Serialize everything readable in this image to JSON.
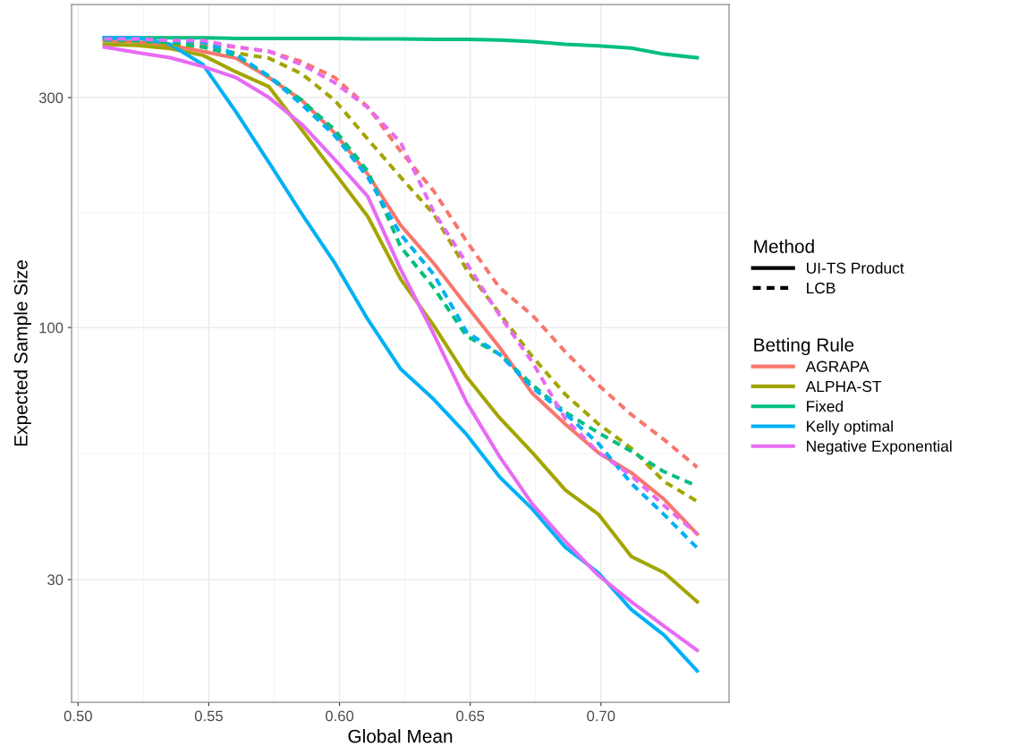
{
  "chart_data": {
    "type": "line",
    "xlabel": "Global Mean",
    "ylabel": "Expected Sample Size",
    "x": [
      0.51,
      0.5226,
      0.5352,
      0.5478,
      0.5604,
      0.573,
      0.5856,
      0.5982,
      0.6108,
      0.6234,
      0.636,
      0.6486,
      0.6612,
      0.6738,
      0.6864,
      0.699,
      0.7116,
      0.7242,
      0.7368
    ],
    "xlim": [
      0.4975,
      0.749
    ],
    "xticks": [
      {
        "value": 0.5,
        "label": "0.50"
      },
      0.55,
      {
        "value": 0.6,
        "label": "0.60"
      },
      0.65,
      {
        "value": 0.7,
        "label": "0.70"
      }
    ],
    "log": true,
    "ylim": [
      16.7,
      468
    ],
    "yticks": [
      30,
      100,
      300
    ],
    "grid": true,
    "legend": "right",
    "legend_title": [
      "Method",
      "Betting Rule"
    ],
    "annotations": [
      "UI-TS Product",
      "LCB"
    ],
    "series": [
      {
        "name": "AGRAPA",
        "line_style": "solid",
        "color": "#f8766d",
        "values": [
          394,
          391,
          385,
          374,
          362,
          330,
          296,
          253,
          208,
          163,
          136,
          111,
          91,
          73,
          63,
          55,
          50,
          44,
          37.3
        ]
      },
      {
        "name": "ALPHA-ST",
        "line_style": "solid",
        "color": "#a3a500",
        "values": [
          387,
          385,
          379,
          367,
          339,
          316,
          257,
          209,
          170,
          126,
          101,
          79,
          65,
          55,
          46,
          41,
          33.5,
          31,
          27
        ]
      },
      {
        "name": "Fixed",
        "line_style": "solid",
        "color": "#00bf7d",
        "values": [
          399,
          399,
          399,
          399,
          398,
          398,
          398,
          398,
          397,
          397,
          396,
          396,
          395,
          392,
          387,
          384,
          380,
          369,
          363
        ]
      },
      {
        "name": "Kelly optimal",
        "line_style": "solid",
        "color": "#00b0f6",
        "values": [
          399,
          399,
          387,
          351,
          280,
          220,
          172,
          136,
          104,
          82,
          71,
          60,
          49,
          42,
          35,
          31,
          26,
          23,
          19.4
        ]
      },
      {
        "name": "Negative Exponential",
        "line_style": "solid",
        "color": "#e76bf3",
        "values": [
          382,
          372,
          363,
          348,
          330,
          300,
          264,
          223,
          187,
          132,
          97,
          70,
          54,
          43,
          36,
          30.6,
          27,
          24,
          21.4
        ]
      },
      {
        "line_style": "dashed",
        "color": "#f8766d",
        "values": [
          395,
          395,
          394,
          387,
          382,
          374,
          356,
          330,
          287,
          232,
          192,
          151,
          121,
          106,
          89,
          76,
          66,
          58.5,
          51.3
        ]
      },
      {
        "line_style": "dashed",
        "color": "#a3a500",
        "values": [
          394,
          393,
          387,
          382,
          371,
          362,
          336,
          296,
          246,
          205,
          172,
          132,
          107,
          87,
          72.6,
          63.1,
          56.2,
          47.9,
          43.6
        ]
      },
      {
        "line_style": "dashed",
        "color": "#00bf7d",
        "values": [
          395,
          394,
          391,
          382,
          367,
          332,
          296,
          257,
          211,
          147,
          121,
          96,
          88,
          76,
          66.7,
          60.5,
          55.4,
          50.2,
          46.9
        ]
      },
      {
        "line_style": "dashed",
        "color": "#00b0f6",
        "values": [
          397,
          397,
          394,
          391,
          369,
          332,
          290,
          250,
          205,
          156,
          129,
          98,
          88,
          75,
          66.2,
          57.5,
          47.5,
          40.9,
          34.9
        ]
      },
      {
        "line_style": "dashed",
        "color": "#e76bf3",
        "values": [
          397,
          397,
          394,
          394,
          382,
          374,
          351,
          322,
          286,
          242,
          174,
          136,
          106,
          84.7,
          64.6,
          55.1,
          49.3,
          42.7,
          37.3
        ]
      }
    ]
  }
}
